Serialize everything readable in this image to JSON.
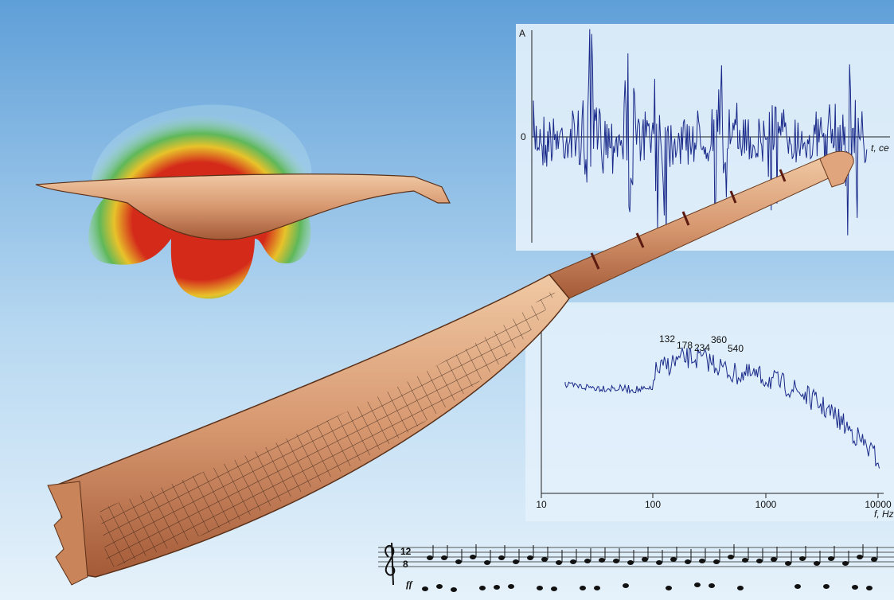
{
  "waveform": {
    "y_label": "A",
    "zero_label": "0",
    "x_label": "t, ce"
  },
  "spectrum": {
    "peaks": [
      "132",
      "178",
      "234",
      "360",
      "540"
    ],
    "x_ticks": [
      "10",
      "100",
      "1000",
      "10000"
    ],
    "x_label": "f, Hz"
  },
  "score": {
    "time_top": "12",
    "time_bottom": "8",
    "dynamic": "ff"
  }
}
